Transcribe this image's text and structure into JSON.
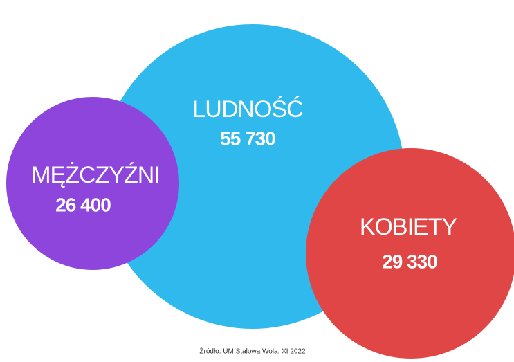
{
  "nodes": [
    {
      "label": "LUDNOŚĆ",
      "value": "55 730"
    },
    {
      "label": "MĘŻCZYŹNI",
      "value": "26 400"
    },
    {
      "label": "KOBIETY",
      "value": "29 330"
    }
  ],
  "source": "Źródło: UM Stalowa Wola, XI 2022"
}
